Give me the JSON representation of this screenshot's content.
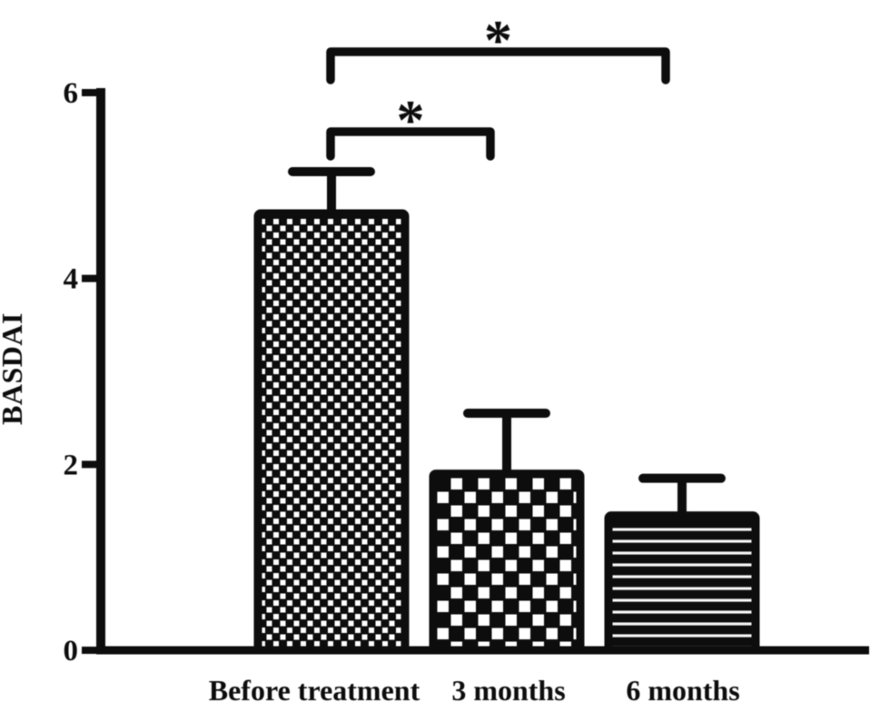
{
  "chart_data": {
    "type": "bar",
    "title": "",
    "xlabel": "",
    "ylabel": "BASDAI",
    "categories": [
      "Before treatment",
      "3 months",
      "6 months"
    ],
    "values": [
      4.7,
      1.9,
      1.45
    ],
    "errors_up": [
      0.45,
      0.65,
      0.4
    ],
    "error_caps_at": [
      5.15,
      2.55,
      1.85
    ],
    "series": [
      {
        "name": "BASDAI",
        "values": [
          4.7,
          1.9,
          1.45
        ]
      }
    ],
    "yticks": [
      "0",
      "2",
      "4",
      "6"
    ],
    "ylim": [
      0,
      6.2
    ],
    "grid": false,
    "legend": "none",
    "bar_patterns": [
      "fine-checkerboard",
      "coarse-checkerboard",
      "horizontal-stripes"
    ],
    "significance_brackets": [
      {
        "from": "Before treatment",
        "to": "3 months",
        "label": "*",
        "level": 1
      },
      {
        "from": "Before treatment",
        "to": "6 months",
        "label": "*",
        "level": 2
      }
    ],
    "colors": {
      "ink": "#0d0d0d",
      "background": "#ffffff",
      "stripe_light": "#f5f5f5"
    }
  }
}
